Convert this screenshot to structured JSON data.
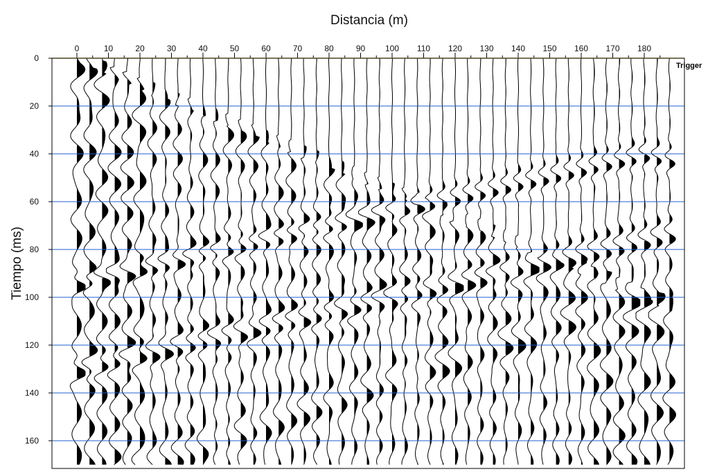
{
  "chart_data": {
    "type": "line",
    "title": "Distancia (m)",
    "xlabel": "Distancia (m)",
    "ylabel": "Tiempo (ms)",
    "x_ticks": [
      0,
      10,
      20,
      30,
      40,
      50,
      60,
      70,
      80,
      90,
      100,
      110,
      120,
      130,
      140,
      150,
      160,
      170,
      180
    ],
    "y_ticks": [
      0,
      20,
      40,
      60,
      80,
      100,
      120,
      140,
      160
    ],
    "xlim": [
      -2,
      190
    ],
    "ylim": [
      0,
      170
    ],
    "y_inverted": true,
    "grid": true,
    "trigger_label": "Trigger",
    "trace_count": 48,
    "colors": {
      "grid": "#1f5fd0",
      "zero_line": "#d8d060",
      "trace": "#000000"
    }
  }
}
